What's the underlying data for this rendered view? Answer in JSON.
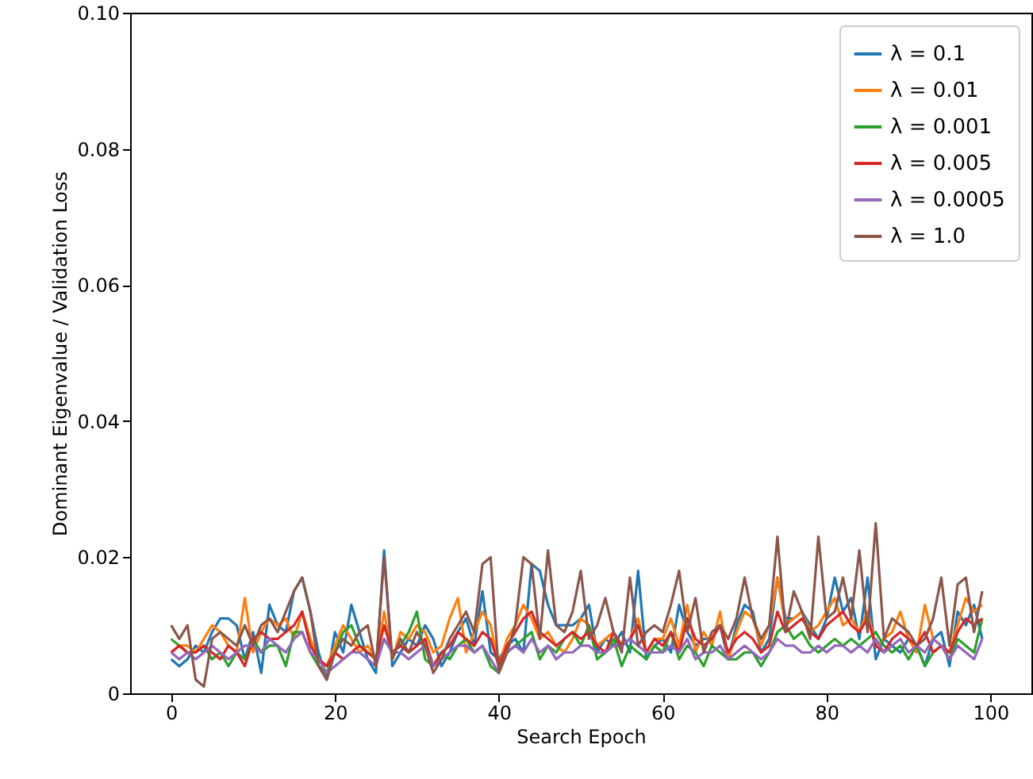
{
  "chart_data": {
    "type": "line",
    "xlabel": "Search Epoch",
    "ylabel": "Dominant Eigenvalue / Validation Loss",
    "x": [
      0,
      1,
      2,
      3,
      4,
      5,
      6,
      7,
      8,
      9,
      10,
      11,
      12,
      13,
      14,
      15,
      16,
      17,
      18,
      19,
      20,
      21,
      22,
      23,
      24,
      25,
      26,
      27,
      28,
      29,
      30,
      31,
      32,
      33,
      34,
      35,
      36,
      37,
      38,
      39,
      40,
      41,
      42,
      43,
      44,
      45,
      46,
      47,
      48,
      49,
      50,
      51,
      52,
      53,
      54,
      55,
      56,
      57,
      58,
      59,
      60,
      61,
      62,
      63,
      64,
      65,
      66,
      67,
      68,
      69,
      70,
      71,
      72,
      73,
      74,
      75,
      76,
      77,
      78,
      79,
      80,
      81,
      82,
      83,
      84,
      85,
      86,
      87,
      88,
      89,
      90,
      91,
      92,
      93,
      94,
      95,
      96,
      97,
      98,
      99
    ],
    "series": [
      {
        "name": "λ = 0.1",
        "color": "#1f77b4",
        "values": [
          0.005,
          0.004,
          0.005,
          0.007,
          0.006,
          0.009,
          0.011,
          0.011,
          0.01,
          0.005,
          0.009,
          0.003,
          0.013,
          0.01,
          0.009,
          0.015,
          0.017,
          0.012,
          0.006,
          0.002,
          0.009,
          0.006,
          0.013,
          0.009,
          0.005,
          0.003,
          0.021,
          0.004,
          0.006,
          0.008,
          0.007,
          0.01,
          0.008,
          0.004,
          0.006,
          0.009,
          0.011,
          0.007,
          0.015,
          0.006,
          0.005,
          0.007,
          0.008,
          0.006,
          0.019,
          0.018,
          0.013,
          0.01,
          0.01,
          0.01,
          0.011,
          0.013,
          0.006,
          0.008,
          0.007,
          0.009,
          0.006,
          0.018,
          0.005,
          0.007,
          0.008,
          0.006,
          0.013,
          0.009,
          0.007,
          0.008,
          0.008,
          0.01,
          0.005,
          0.01,
          0.013,
          0.012,
          0.006,
          0.008,
          0.017,
          0.011,
          0.011,
          0.012,
          0.01,
          0.008,
          0.011,
          0.017,
          0.012,
          0.014,
          0.008,
          0.017,
          0.005,
          0.008,
          0.007,
          0.006,
          0.008,
          0.007,
          0.004,
          0.008,
          0.009,
          0.004,
          0.012,
          0.01,
          0.013,
          0.008
        ]
      },
      {
        "name": "λ = 0.01",
        "color": "#ff7f0e",
        "values": [
          0.006,
          0.007,
          0.007,
          0.006,
          0.008,
          0.01,
          0.009,
          0.007,
          0.006,
          0.014,
          0.006,
          0.009,
          0.011,
          0.01,
          0.011,
          0.008,
          0.012,
          0.008,
          0.005,
          0.004,
          0.007,
          0.01,
          0.008,
          0.006,
          0.007,
          0.005,
          0.012,
          0.005,
          0.009,
          0.008,
          0.01,
          0.009,
          0.006,
          0.007,
          0.011,
          0.014,
          0.006,
          0.009,
          0.012,
          0.01,
          0.004,
          0.008,
          0.01,
          0.013,
          0.011,
          0.008,
          0.009,
          0.007,
          0.006,
          0.008,
          0.011,
          0.01,
          0.007,
          0.008,
          0.009,
          0.007,
          0.008,
          0.011,
          0.006,
          0.008,
          0.008,
          0.011,
          0.007,
          0.013,
          0.006,
          0.009,
          0.007,
          0.012,
          0.005,
          0.009,
          0.012,
          0.011,
          0.007,
          0.01,
          0.017,
          0.01,
          0.011,
          0.012,
          0.009,
          0.01,
          0.012,
          0.014,
          0.01,
          0.011,
          0.009,
          0.012,
          0.007,
          0.008,
          0.009,
          0.012,
          0.008,
          0.006,
          0.013,
          0.008,
          0.007,
          0.006,
          0.01,
          0.014,
          0.012,
          0.013
        ]
      },
      {
        "name": "λ = 0.001",
        "color": "#2ca02c",
        "values": [
          0.008,
          0.007,
          0.006,
          0.006,
          0.007,
          0.005,
          0.006,
          0.004,
          0.006,
          0.005,
          0.008,
          0.006,
          0.007,
          0.007,
          0.004,
          0.009,
          0.009,
          0.006,
          0.004,
          0.003,
          0.006,
          0.009,
          0.01,
          0.007,
          0.006,
          0.005,
          0.008,
          0.006,
          0.007,
          0.009,
          0.012,
          0.005,
          0.004,
          0.006,
          0.005,
          0.007,
          0.008,
          0.006,
          0.007,
          0.004,
          0.003,
          0.006,
          0.007,
          0.008,
          0.009,
          0.005,
          0.007,
          0.006,
          0.008,
          0.009,
          0.007,
          0.01,
          0.005,
          0.006,
          0.008,
          0.004,
          0.007,
          0.006,
          0.005,
          0.007,
          0.006,
          0.009,
          0.005,
          0.007,
          0.006,
          0.004,
          0.007,
          0.006,
          0.005,
          0.005,
          0.006,
          0.006,
          0.004,
          0.006,
          0.009,
          0.01,
          0.008,
          0.009,
          0.007,
          0.006,
          0.007,
          0.008,
          0.007,
          0.008,
          0.007,
          0.008,
          0.009,
          0.007,
          0.006,
          0.007,
          0.005,
          0.007,
          0.004,
          0.006,
          0.007,
          0.005,
          0.008,
          0.007,
          0.006,
          0.011
        ]
      },
      {
        "name": "λ = 0.005",
        "color": "#d62728",
        "values": [
          0.006,
          0.007,
          0.006,
          0.006,
          0.007,
          0.006,
          0.005,
          0.007,
          0.006,
          0.004,
          0.008,
          0.009,
          0.008,
          0.008,
          0.009,
          0.01,
          0.012,
          0.007,
          0.005,
          0.004,
          0.006,
          0.005,
          0.006,
          0.007,
          0.006,
          0.005,
          0.01,
          0.006,
          0.007,
          0.006,
          0.007,
          0.008,
          0.004,
          0.006,
          0.007,
          0.009,
          0.008,
          0.007,
          0.009,
          0.008,
          0.004,
          0.007,
          0.009,
          0.011,
          0.012,
          0.009,
          0.008,
          0.007,
          0.008,
          0.009,
          0.008,
          0.009,
          0.007,
          0.006,
          0.009,
          0.007,
          0.008,
          0.01,
          0.006,
          0.008,
          0.007,
          0.009,
          0.006,
          0.011,
          0.008,
          0.007,
          0.008,
          0.01,
          0.006,
          0.008,
          0.009,
          0.008,
          0.006,
          0.007,
          0.012,
          0.009,
          0.01,
          0.011,
          0.009,
          0.008,
          0.01,
          0.011,
          0.012,
          0.01,
          0.009,
          0.011,
          0.007,
          0.006,
          0.008,
          0.009,
          0.008,
          0.007,
          0.009,
          0.006,
          0.007,
          0.006,
          0.009,
          0.011,
          0.01,
          0.011
        ]
      },
      {
        "name": "λ = 0.0005",
        "color": "#9467bd",
        "values": [
          0.006,
          0.005,
          0.006,
          0.005,
          0.006,
          0.007,
          0.006,
          0.005,
          0.006,
          0.007,
          0.007,
          0.006,
          0.008,
          0.007,
          0.006,
          0.008,
          0.009,
          0.006,
          0.005,
          0.003,
          0.004,
          0.005,
          0.006,
          0.006,
          0.005,
          0.004,
          0.008,
          0.006,
          0.006,
          0.005,
          0.006,
          0.007,
          0.004,
          0.005,
          0.006,
          0.007,
          0.007,
          0.006,
          0.007,
          0.005,
          0.003,
          0.006,
          0.007,
          0.006,
          0.008,
          0.006,
          0.007,
          0.005,
          0.006,
          0.006,
          0.007,
          0.007,
          0.006,
          0.006,
          0.007,
          0.007,
          0.008,
          0.007,
          0.006,
          0.006,
          0.006,
          0.007,
          0.006,
          0.008,
          0.005,
          0.006,
          0.006,
          0.007,
          0.005,
          0.006,
          0.007,
          0.006,
          0.005,
          0.006,
          0.008,
          0.007,
          0.007,
          0.006,
          0.006,
          0.007,
          0.006,
          0.007,
          0.007,
          0.006,
          0.007,
          0.006,
          0.008,
          0.006,
          0.007,
          0.008,
          0.006,
          0.007,
          0.006,
          0.008,
          0.007,
          0.005,
          0.007,
          0.006,
          0.005,
          0.008
        ]
      },
      {
        "name": "λ = 1.0",
        "color": "#8c564b",
        "values": [
          0.01,
          0.008,
          0.01,
          0.002,
          0.001,
          0.008,
          0.009,
          0.008,
          0.007,
          0.01,
          0.007,
          0.01,
          0.011,
          0.009,
          0.012,
          0.015,
          0.017,
          0.012,
          0.004,
          0.002,
          0.006,
          0.008,
          0.007,
          0.009,
          0.01,
          0.004,
          0.02,
          0.005,
          0.008,
          0.006,
          0.009,
          0.007,
          0.003,
          0.005,
          0.008,
          0.01,
          0.012,
          0.009,
          0.019,
          0.02,
          0.003,
          0.006,
          0.01,
          0.02,
          0.019,
          0.008,
          0.021,
          0.01,
          0.009,
          0.012,
          0.018,
          0.008,
          0.01,
          0.014,
          0.009,
          0.006,
          0.017,
          0.007,
          0.009,
          0.01,
          0.009,
          0.013,
          0.018,
          0.009,
          0.014,
          0.006,
          0.009,
          0.01,
          0.008,
          0.011,
          0.017,
          0.011,
          0.008,
          0.01,
          0.023,
          0.009,
          0.015,
          0.012,
          0.008,
          0.023,
          0.011,
          0.012,
          0.017,
          0.011,
          0.021,
          0.009,
          0.025,
          0.008,
          0.011,
          0.01,
          0.009,
          0.007,
          0.008,
          0.011,
          0.017,
          0.007,
          0.016,
          0.017,
          0.009,
          0.015
        ]
      }
    ],
    "xlim": [
      -5,
      105
    ],
    "xticks": [
      0,
      20,
      40,
      60,
      80,
      100
    ],
    "ylim": [
      0,
      0.1
    ],
    "yticks": [
      0.0,
      {
        "value": 0.02,
        "label": "0.02"
      },
      {
        "value": 0.04,
        "label": "0.04"
      },
      {
        "value": 0.06,
        "label": "0.06"
      },
      {
        "value": 0.08,
        "label": "0.08"
      },
      {
        "value": 0.1,
        "label": "0.10"
      }
    ],
    "grid": false,
    "legend": "top right"
  }
}
